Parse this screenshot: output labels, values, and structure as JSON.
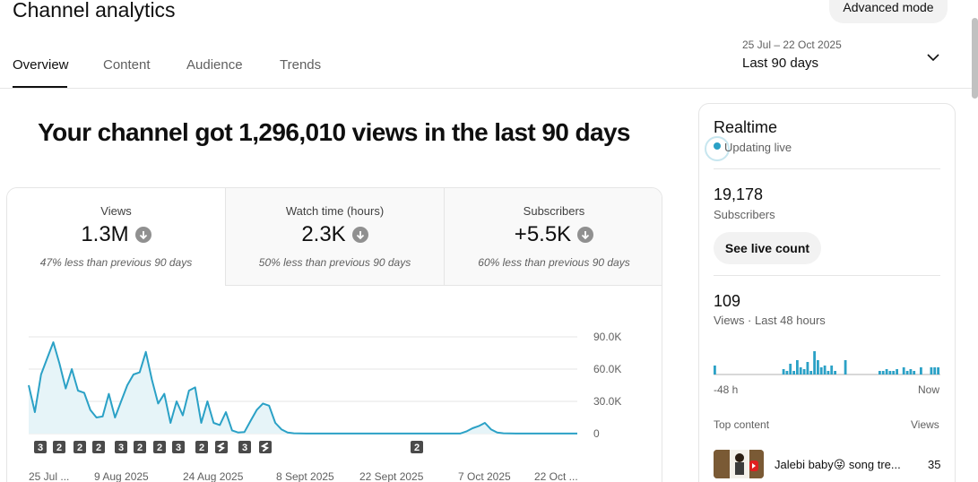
{
  "header": {
    "title": "Channel analytics",
    "advanced_mode_label": "Advanced mode",
    "tabs": [
      {
        "label": "Overview",
        "active": true
      },
      {
        "label": "Content",
        "active": false
      },
      {
        "label": "Audience",
        "active": false
      },
      {
        "label": "Trends",
        "active": false
      }
    ],
    "date_range": "25 Jul – 22 Oct 2025",
    "period_label": "Last 90 days"
  },
  "headline": "Your channel got 1,296,010 views in the last 90 days",
  "metrics": [
    {
      "label": "Views",
      "value": "1.3M",
      "comparison": "47% less than previous 90 days",
      "selected": true
    },
    {
      "label": "Watch time (hours)",
      "value": "2.3K",
      "comparison": "50% less than previous 90 days",
      "selected": false
    },
    {
      "label": "Subscribers",
      "value": "+5.5K",
      "comparison": "60% less than previous 90 days",
      "selected": false
    }
  ],
  "chart_data": {
    "type": "area",
    "x_tick_labels": [
      "25 Jul ...",
      "9 Aug 2025",
      "24 Aug 2025",
      "8 Sept 2025",
      "22 Sept 2025",
      "7 Oct 2025",
      "22 Oct ..."
    ],
    "y_tick_labels": [
      "90.0K",
      "60.0K",
      "30.0K",
      "0"
    ],
    "ylim": [
      0,
      90000
    ],
    "series": [
      {
        "values": [
          45000,
          20000,
          55000,
          70000,
          85000,
          65000,
          42000,
          60000,
          40000,
          38000,
          22000,
          15000,
          16000,
          37000,
          15000,
          30000,
          45000,
          55000,
          57000,
          76000,
          50000,
          28000,
          37000,
          10000,
          30000,
          17000,
          40000,
          43000,
          10000,
          30000,
          10000,
          8000,
          20000,
          3000,
          1000,
          1500,
          12000,
          22000,
          28000,
          26000,
          10000,
          4000,
          1000,
          300,
          200,
          100,
          100,
          100,
          100,
          100,
          100,
          100,
          100,
          100,
          100,
          100,
          100,
          100,
          100,
          100,
          100,
          100,
          100,
          100,
          100,
          100,
          100,
          100,
          100,
          100,
          100,
          2000,
          5000,
          7000,
          10000,
          4000,
          1000,
          300,
          200,
          100,
          100,
          100,
          100,
          100,
          100,
          100,
          100,
          100,
          100,
          100
        ]
      }
    ],
    "grid": true,
    "markers": [
      {
        "label": "3",
        "icon": "number-badge"
      },
      {
        "label": "2",
        "icon": "number-badge"
      },
      {
        "label": "2",
        "icon": "number-badge"
      },
      {
        "label": "2",
        "icon": "number-badge"
      },
      {
        "label": "3",
        "icon": "number-badge"
      },
      {
        "label": "2",
        "icon": "number-badge"
      },
      {
        "label": "2",
        "icon": "number-badge"
      },
      {
        "label": "3",
        "icon": "number-badge"
      },
      {
        "label": "2",
        "icon": "number-badge"
      },
      {
        "label": "",
        "icon": "shorts-icon"
      },
      {
        "label": "3",
        "icon": "number-badge"
      },
      {
        "label": "",
        "icon": "shorts-icon"
      },
      {
        "label": "2",
        "icon": "number-badge"
      }
    ],
    "colors": {
      "line": "#2ba1c6",
      "fill": "#e6f4f8",
      "grid": "#e5e5e5"
    }
  },
  "realtime": {
    "title": "Realtime",
    "status": "Updating live",
    "subscribers_value": "19,178",
    "subscribers_label": "Subscribers",
    "live_count_button": "See live count",
    "views_value": "109",
    "views_label": "Views · Last 48 hours",
    "mini_chart": {
      "type": "bar",
      "axis_start": "-48 h",
      "axis_end": "Now",
      "values": [
        5,
        0,
        0,
        0,
        0,
        0,
        0,
        0,
        0,
        0,
        0,
        0,
        0,
        0,
        0,
        0,
        0,
        0,
        0,
        0,
        3,
        2,
        6,
        2,
        8,
        4,
        3,
        7,
        2,
        13,
        8,
        4,
        5,
        2,
        5,
        2,
        0,
        0,
        8,
        0,
        0,
        0,
        0,
        0,
        0,
        0,
        0,
        0,
        2,
        2,
        3,
        2,
        2,
        3,
        0,
        4,
        2,
        3,
        2,
        0,
        4,
        0,
        0,
        4,
        4,
        4
      ],
      "color": "#2ba1c6"
    },
    "top_content_label": "Top content",
    "views_column_label": "Views",
    "top_content": [
      {
        "title": "Jalebi baby😜 song tre...",
        "views": "35"
      }
    ]
  }
}
